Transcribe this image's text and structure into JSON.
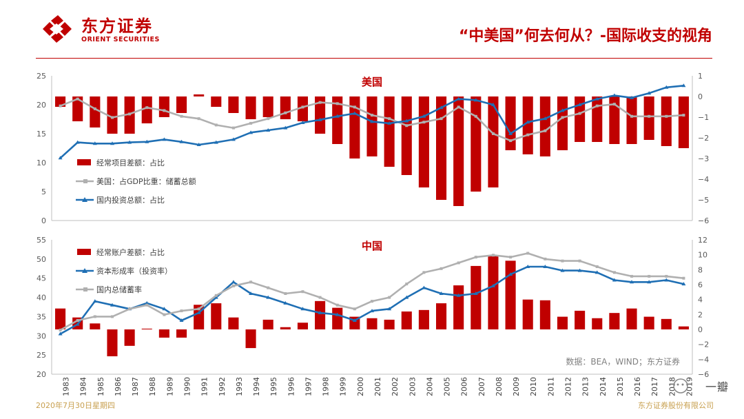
{
  "header": {
    "brand_cn": "东方证券",
    "brand_en": "ORIENT SECURITIES",
    "title": "“中美国”何去何从？-国际收支的视角"
  },
  "footer": {
    "date": "2020年7月30日星期四",
    "company": "东方证券股份有限公司",
    "watermark": "一瓣"
  },
  "colors": {
    "bar": "#c00000",
    "investment": "#1f6fb4",
    "savings": "#b0b0b0",
    "brand": "#c00000"
  },
  "chart_data": [
    {
      "type": "bar+line",
      "title": "美国",
      "years": [
        "1983",
        "1984",
        "1985",
        "1986",
        "1987",
        "1988",
        "1989",
        "1990",
        "1991",
        "1992",
        "1993",
        "1994",
        "1995",
        "1996",
        "1997",
        "1998",
        "1999",
        "2000",
        "2001",
        "2002",
        "2003",
        "2004",
        "2005",
        "2006",
        "2007",
        "2008",
        "2009",
        "2010",
        "2011",
        "2012",
        "2013",
        "2014",
        "2015",
        "2016",
        "2017",
        "2018",
        "2019"
      ],
      "left_axis": {
        "min": 0,
        "max": 25,
        "ticks": [
          "0",
          "5",
          "10",
          "15",
          "20",
          "25"
        ]
      },
      "right_axis": {
        "min": -6,
        "max": 1,
        "ticks": [
          "−6",
          "−5",
          "−4",
          "−3",
          "−2",
          "−1",
          "0",
          "1"
        ]
      },
      "series": [
        {
          "name": "经常项目差额：占比",
          "kind": "bar",
          "axis": "right",
          "values": [
            -0.5,
            -1.2,
            -1.5,
            -1.8,
            -1.8,
            -1.3,
            -1.0,
            -0.8,
            0.1,
            -0.5,
            -0.8,
            -1.1,
            -1.0,
            -1.1,
            -1.2,
            -1.8,
            -2.3,
            -3.0,
            -2.9,
            -3.4,
            -3.8,
            -4.4,
            -5.0,
            -5.3,
            -4.6,
            -4.4,
            -2.6,
            -2.8,
            -2.9,
            -2.6,
            -2.2,
            -2.2,
            -2.3,
            -2.3,
            -2.1,
            -2.4,
            -2.5
          ]
        },
        {
          "name": "美国：占GDP比重：储蓄总额",
          "kind": "line",
          "axis": "left",
          "values": [
            19.8,
            21.0,
            19.3,
            17.8,
            18.4,
            19.5,
            19.0,
            18.0,
            17.6,
            16.5,
            16.0,
            16.8,
            17.6,
            18.6,
            19.6,
            20.4,
            20.2,
            19.6,
            18.2,
            17.6,
            16.4,
            17.0,
            17.6,
            19.6,
            18.0,
            15.0,
            13.8,
            14.8,
            15.5,
            17.8,
            18.5,
            19.8,
            20.1,
            18.0,
            18.0,
            18.0,
            18.2
          ]
        },
        {
          "name": "国内投资总额：占比",
          "kind": "line",
          "axis": "left",
          "values": [
            10.8,
            13.5,
            13.3,
            13.3,
            13.5,
            13.6,
            14.0,
            13.6,
            13.1,
            13.5,
            14.0,
            15.2,
            15.6,
            16.0,
            16.9,
            17.4,
            18.0,
            18.5,
            17.1,
            16.8,
            17.2,
            18.0,
            19.5,
            21.0,
            20.8,
            20.0,
            15.0,
            17.0,
            17.6,
            19.0,
            20.0,
            21.0,
            21.6,
            21.2,
            22.0,
            23.0,
            23.3
          ]
        }
      ]
    },
    {
      "type": "bar+line",
      "title": "中国",
      "years": [
        "1983",
        "1984",
        "1985",
        "1986",
        "1987",
        "1988",
        "1989",
        "1990",
        "1991",
        "1992",
        "1993",
        "1994",
        "1995",
        "1996",
        "1997",
        "1998",
        "1999",
        "2000",
        "2001",
        "2002",
        "2003",
        "2004",
        "2005",
        "2006",
        "2007",
        "2008",
        "2009",
        "2010",
        "2011",
        "2012",
        "2013",
        "2014",
        "2015",
        "2016",
        "2017",
        "2018",
        "2019"
      ],
      "left_axis": {
        "min": 20,
        "max": 55,
        "ticks": [
          "20",
          "25",
          "30",
          "35",
          "40",
          "45",
          "50",
          "55"
        ]
      },
      "right_axis": {
        "min": -6,
        "max": 12,
        "ticks": [
          "−6",
          "−4",
          "−2",
          "0",
          "2",
          "4",
          "6",
          "8",
          "10",
          "12"
        ]
      },
      "series": [
        {
          "name": "经常账户差额：占比",
          "kind": "bar",
          "axis": "right",
          "values": [
            2.8,
            1.6,
            0.8,
            -3.6,
            -2.2,
            0.1,
            -1.1,
            -1.1,
            3.3,
            3.5,
            1.6,
            -2.5,
            1.3,
            0.3,
            0.9,
            3.8,
            2.9,
            1.7,
            1.5,
            1.3,
            2.4,
            2.6,
            3.5,
            5.9,
            8.5,
            9.8,
            9.2,
            4.0,
            3.9,
            1.7,
            2.5,
            1.5,
            2.2,
            2.8,
            1.7,
            1.4,
            0.4
          ]
        },
        {
          "name": "资本形成率（投资率）",
          "kind": "line",
          "axis": "left",
          "values": [
            30.5,
            33.0,
            39.0,
            38.0,
            37.0,
            38.5,
            37.0,
            34.0,
            36.0,
            40.0,
            44.0,
            41.0,
            40.0,
            38.5,
            37.0,
            36.0,
            35.5,
            34.0,
            36.5,
            37.0,
            40.0,
            42.5,
            41.0,
            40.5,
            41.0,
            43.0,
            46.0,
            48.0,
            48.0,
            47.0,
            47.0,
            46.5,
            44.5,
            44.0,
            44.0,
            44.5,
            43.5
          ]
        },
        {
          "name": "国内总储蓄率",
          "kind": "line",
          "axis": "left",
          "values": [
            31.5,
            34.0,
            35.0,
            35.0,
            37.0,
            38.0,
            35.5,
            36.5,
            37.0,
            40.5,
            43.0,
            44.0,
            42.5,
            41.0,
            41.5,
            40.0,
            38.0,
            37.0,
            39.0,
            40.0,
            43.5,
            46.5,
            47.5,
            49.0,
            50.5,
            51.0,
            50.5,
            51.5,
            50.0,
            49.5,
            49.5,
            48.0,
            46.5,
            45.5,
            45.5,
            45.5,
            45.0
          ]
        }
      ],
      "source": "数据：BEA，WIND；东方证券"
    }
  ]
}
